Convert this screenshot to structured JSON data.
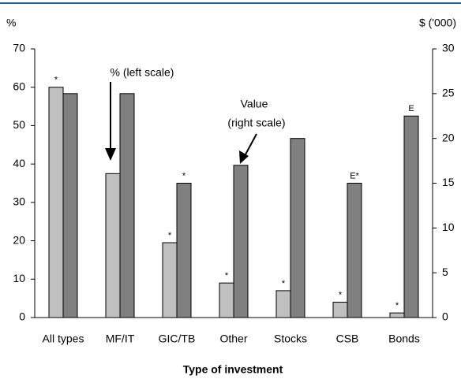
{
  "chart_data": {
    "type": "bar",
    "left_axis_label": "%",
    "right_axis_label": "$ ('000)",
    "x_label": "Type of investment",
    "categories": [
      "All types",
      "MF/IT",
      "GIC/TB",
      "Other",
      "Stocks",
      "CSB",
      "Bonds"
    ],
    "series": [
      {
        "color": "#c0c0c0",
        "values": [
          60,
          37.5,
          19.5,
          9,
          7,
          4,
          1.2
        ],
        "flags": [
          "*",
          null,
          "*",
          "*",
          "*",
          "*",
          "*"
        ]
      },
      {
        "color": "#808080",
        "axis": "y2",
        "values": [
          25,
          25,
          15,
          17,
          20,
          15,
          22.5
        ],
        "flags": [
          null,
          null,
          "*",
          "*",
          null,
          "E*",
          "E"
        ]
      }
    ],
    "annotations": [
      "% (left scale)",
      "Value",
      "(right scale)"
    ],
    "ylim": [
      0,
      70
    ],
    "yticks": [
      0,
      10,
      20,
      30,
      40,
      50,
      60,
      70
    ],
    "y2lim": [
      0,
      30
    ],
    "y2ticks": [
      0,
      5,
      10,
      15,
      20,
      25,
      30
    ]
  }
}
